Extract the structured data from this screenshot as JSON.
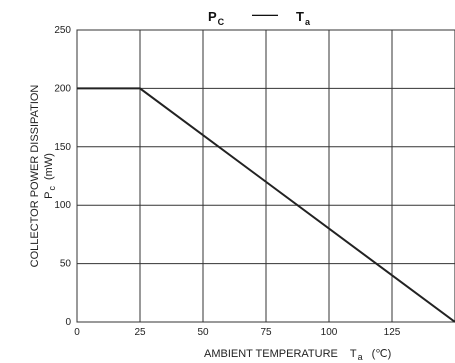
{
  "chart_data": {
    "type": "line",
    "title": {
      "left_main": "P",
      "left_sub": "C",
      "dash": "——",
      "right_main": "T",
      "right_sub": "a"
    },
    "xlabel": {
      "text": "AMBIENT TEMPERATURE",
      "symbol_main": "T",
      "symbol_sub": "a",
      "unit": "(℃)"
    },
    "ylabel": {
      "line1": "COLLECTOR POWER DISSIPATION",
      "symbol_main": "P",
      "symbol_sub": "c",
      "unit": "(mW)"
    },
    "xlim": [
      0,
      150
    ],
    "ylim": [
      0,
      250
    ],
    "xticks": [
      0,
      25,
      50,
      75,
      100,
      125
    ],
    "xtick_labels": [
      "0",
      "25",
      "50",
      "75",
      "100",
      "125"
    ],
    "yticks": [
      0,
      50,
      100,
      150,
      200,
      250
    ],
    "ytick_labels": [
      "0",
      "50",
      "100",
      "150",
      "200",
      "250"
    ],
    "grid": true,
    "series": [
      {
        "x": [
          0,
          25,
          150
        ],
        "y": [
          200,
          200,
          0
        ],
        "color": "#222222"
      }
    ]
  }
}
